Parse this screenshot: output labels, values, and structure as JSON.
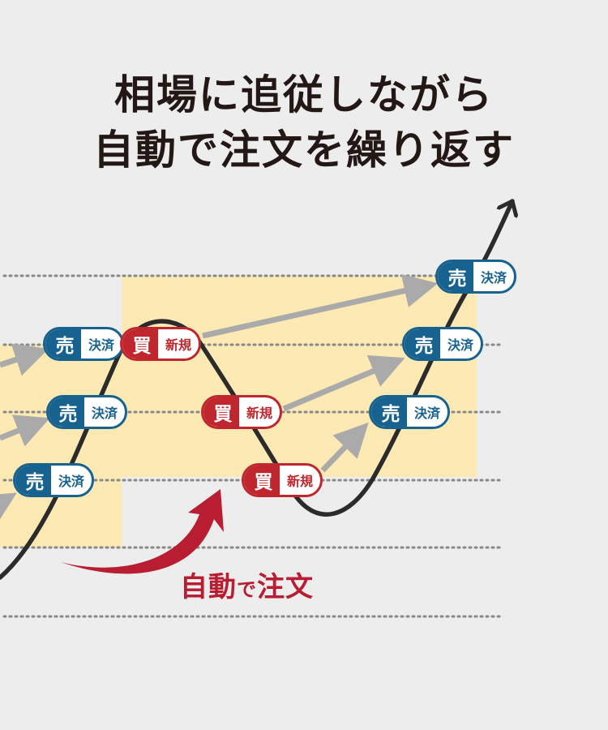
{
  "title": {
    "line1": "相場に追従しながら",
    "line2": "自動で注文を繰り返す"
  },
  "pill_text": {
    "sell": "売",
    "buy": "買",
    "settle": "決済",
    "new": "新規"
  },
  "auto_label": {
    "part1": "自動",
    "part2": "で",
    "part3": "注文"
  },
  "colors": {
    "background": "#ededed",
    "highlight_band": "#fce9b4",
    "sell_blue": "#17628e",
    "buy_red": "#c0262d",
    "arrow_gray": "#aaaaaa",
    "price_line": "#2b2b2b",
    "auto_arrow": "#b81d31"
  }
}
